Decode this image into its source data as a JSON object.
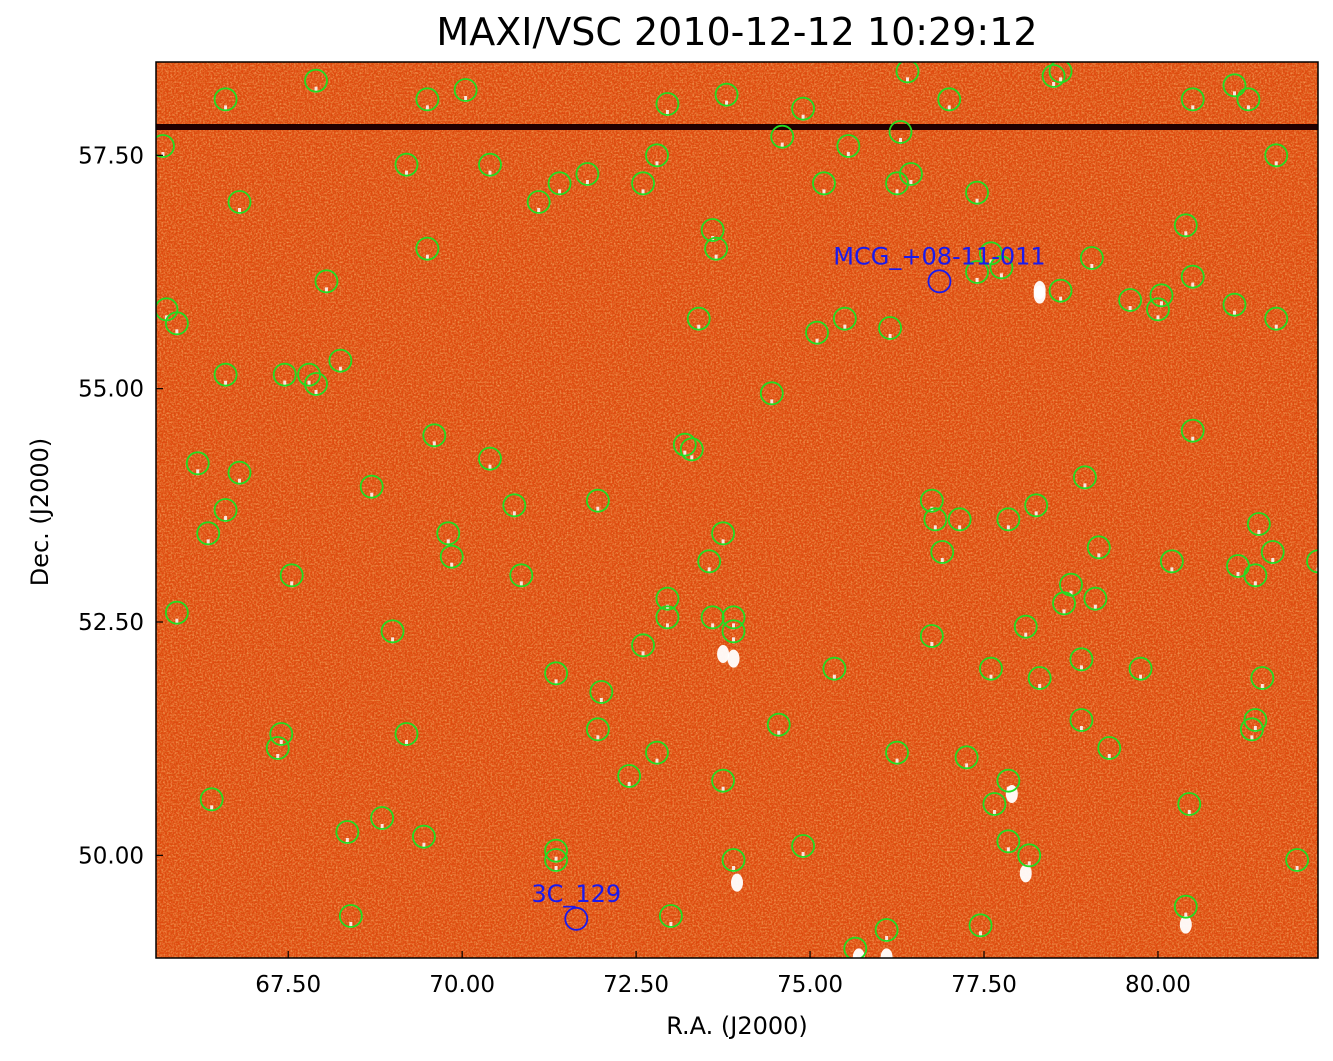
{
  "title": "MAXI/VSC 2010-12-12 10:29:12",
  "xlabel": "R.A. (J2000)",
  "ylabel": "Dec. (J2000)",
  "colors": {
    "background": "#e04a10",
    "noise_light": "#f06a20",
    "noise_dark": "#b02800",
    "stripe": "#200000",
    "catalog_circle": "#22dd22",
    "target_circle": "#1a1aee",
    "target_label": "#1a1aee"
  },
  "x_ticks": [
    "67.50",
    "70.00",
    "72.50",
    "75.00",
    "77.50",
    "80.00"
  ],
  "y_ticks": [
    "57.50",
    "55.00",
    "52.50",
    "50.00"
  ],
  "chart_data": {
    "type": "scatter",
    "xlim": [
      65.6,
      82.3
    ],
    "ylim": [
      48.9,
      58.5
    ],
    "x_tick_values": [
      67.5,
      70.0,
      72.5,
      75.0,
      77.5,
      80.0
    ],
    "y_tick_values": [
      57.5,
      55.0,
      52.5,
      50.0
    ],
    "targets": [
      {
        "name": "MCG_+08-11-011",
        "ra": 76.86,
        "dec": 56.15
      },
      {
        "name": "3C_129",
        "ra": 71.64,
        "dec": 49.32
      }
    ],
    "catalog_sources": [
      [
        66.6,
        58.1
      ],
      [
        67.9,
        58.3
      ],
      [
        69.5,
        58.1
      ],
      [
        70.05,
        58.2
      ],
      [
        72.95,
        58.05
      ],
      [
        73.8,
        58.15
      ],
      [
        74.9,
        58.0
      ],
      [
        76.4,
        58.4
      ],
      [
        77.0,
        58.1
      ],
      [
        78.5,
        58.35
      ],
      [
        78.6,
        58.4
      ],
      [
        80.5,
        58.1
      ],
      [
        81.1,
        58.25
      ],
      [
        81.3,
        58.1
      ],
      [
        65.7,
        57.6
      ],
      [
        69.2,
        57.4
      ],
      [
        70.4,
        57.4
      ],
      [
        71.4,
        57.2
      ],
      [
        71.8,
        57.3
      ],
      [
        72.6,
        57.2
      ],
      [
        72.8,
        57.5
      ],
      [
        74.6,
        57.7
      ],
      [
        75.2,
        57.2
      ],
      [
        75.55,
        57.6
      ],
      [
        76.3,
        57.75
      ],
      [
        76.25,
        57.2
      ],
      [
        76.45,
        57.3
      ],
      [
        77.4,
        57.1
      ],
      [
        81.7,
        57.5
      ],
      [
        66.8,
        57.0
      ],
      [
        71.1,
        57.0
      ],
      [
        73.6,
        56.7
      ],
      [
        73.65,
        56.5
      ],
      [
        69.5,
        56.5
      ],
      [
        77.6,
        56.45
      ],
      [
        77.75,
        56.3
      ],
      [
        77.4,
        56.25
      ],
      [
        80.4,
        56.75
      ],
      [
        79.05,
        56.4
      ],
      [
        80.5,
        56.2
      ],
      [
        68.05,
        56.15
      ],
      [
        78.6,
        56.05
      ],
      [
        80.05,
        56.0
      ],
      [
        79.6,
        55.95
      ],
      [
        81.1,
        55.9
      ],
      [
        80.0,
        55.85
      ],
      [
        65.75,
        55.85
      ],
      [
        65.9,
        55.7
      ],
      [
        73.4,
        55.75
      ],
      [
        75.5,
        55.75
      ],
      [
        75.1,
        55.6
      ],
      [
        76.15,
        55.65
      ],
      [
        81.7,
        55.75
      ],
      [
        66.6,
        55.15
      ],
      [
        67.45,
        55.15
      ],
      [
        67.8,
        55.15
      ],
      [
        67.9,
        55.05
      ],
      [
        68.25,
        55.3
      ],
      [
        74.45,
        54.95
      ],
      [
        69.6,
        54.5
      ],
      [
        70.4,
        54.25
      ],
      [
        73.2,
        54.4
      ],
      [
        73.3,
        54.35
      ],
      [
        80.5,
        54.55
      ],
      [
        66.2,
        54.2
      ],
      [
        66.8,
        54.1
      ],
      [
        68.7,
        53.95
      ],
      [
        78.95,
        54.05
      ],
      [
        66.6,
        53.7
      ],
      [
        66.35,
        53.45
      ],
      [
        70.75,
        53.75
      ],
      [
        71.95,
        53.8
      ],
      [
        76.75,
        53.8
      ],
      [
        76.8,
        53.6
      ],
      [
        77.15,
        53.6
      ],
      [
        77.85,
        53.6
      ],
      [
        78.25,
        53.75
      ],
      [
        73.75,
        53.45
      ],
      [
        69.8,
        53.45
      ],
      [
        69.85,
        53.2
      ],
      [
        73.55,
        53.15
      ],
      [
        76.9,
        53.25
      ],
      [
        79.15,
        53.3
      ],
      [
        80.2,
        53.15
      ],
      [
        81.15,
        53.1
      ],
      [
        81.4,
        53.0
      ],
      [
        81.45,
        53.55
      ],
      [
        81.65,
        53.25
      ],
      [
        82.3,
        53.15
      ],
      [
        67.55,
        53.0
      ],
      [
        70.85,
        53.0
      ],
      [
        65.9,
        52.6
      ],
      [
        69.0,
        52.4
      ],
      [
        72.95,
        52.75
      ],
      [
        72.95,
        52.55
      ],
      [
        73.6,
        52.55
      ],
      [
        73.9,
        52.55
      ],
      [
        73.9,
        52.4
      ],
      [
        78.1,
        52.45
      ],
      [
        78.65,
        52.7
      ],
      [
        78.75,
        52.9
      ],
      [
        79.1,
        52.75
      ],
      [
        76.75,
        52.35
      ],
      [
        72.6,
        52.25
      ],
      [
        71.35,
        51.95
      ],
      [
        72.0,
        51.75
      ],
      [
        75.35,
        52.0
      ],
      [
        77.6,
        52.0
      ],
      [
        78.3,
        51.9
      ],
      [
        78.9,
        52.1
      ],
      [
        79.75,
        52.0
      ],
      [
        81.5,
        51.9
      ],
      [
        67.4,
        51.3
      ],
      [
        67.35,
        51.15
      ],
      [
        69.2,
        51.3
      ],
      [
        71.95,
        51.35
      ],
      [
        74.55,
        51.4
      ],
      [
        78.9,
        51.45
      ],
      [
        79.3,
        51.15
      ],
      [
        81.4,
        51.45
      ],
      [
        81.35,
        51.35
      ],
      [
        72.8,
        51.1
      ],
      [
        76.25,
        51.1
      ],
      [
        77.25,
        51.05
      ],
      [
        72.4,
        50.85
      ],
      [
        73.75,
        50.8
      ],
      [
        77.85,
        50.8
      ],
      [
        77.65,
        50.55
      ],
      [
        80.45,
        50.55
      ],
      [
        66.4,
        50.6
      ],
      [
        68.35,
        50.25
      ],
      [
        68.85,
        50.4
      ],
      [
        69.45,
        50.2
      ],
      [
        71.35,
        50.05
      ],
      [
        71.35,
        49.95
      ],
      [
        73.9,
        49.95
      ],
      [
        74.9,
        50.1
      ],
      [
        77.85,
        50.15
      ],
      [
        78.15,
        50.0
      ],
      [
        82.0,
        49.95
      ],
      [
        68.4,
        49.35
      ],
      [
        73.0,
        49.35
      ],
      [
        75.65,
        49.0
      ],
      [
        76.1,
        49.2
      ],
      [
        77.45,
        49.25
      ],
      [
        80.4,
        49.45
      ]
    ],
    "bright_spots": [
      [
        73.9,
        52.15
      ],
      [
        78.3,
        56.1
      ],
      [
        78.3,
        56.05
      ],
      [
        73.75,
        52.2
      ],
      [
        76.1,
        48.95
      ],
      [
        75.7,
        48.95
      ],
      [
        80.4,
        49.3
      ],
      [
        73.95,
        49.75
      ],
      [
        77.9,
        50.7
      ],
      [
        78.1,
        49.85
      ]
    ]
  }
}
